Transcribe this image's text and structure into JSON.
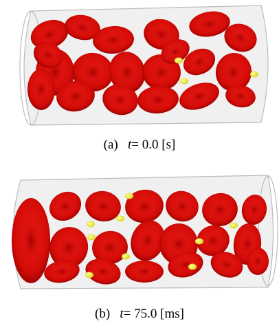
{
  "panels": [
    {
      "label": "(a)",
      "variable": "t",
      "text": "= 0.0 [s]"
    },
    {
      "label": "(b)",
      "variable": "t",
      "text": "= 75.0 [ms]"
    }
  ]
}
